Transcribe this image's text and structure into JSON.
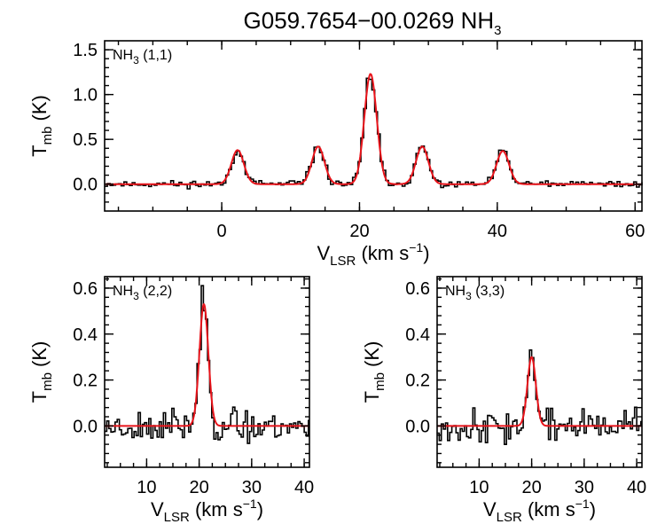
{
  "figure": {
    "title_main": "G059.7654−00.0269 NH",
    "title_sub": "3"
  },
  "colors": {
    "observed": "#000000",
    "fit": "#e8141b"
  },
  "chart_data": [
    {
      "type": "line",
      "name": "NH3 (1,1)",
      "label_main": "NH",
      "label_sub": "3",
      "label_tail": " (1,1)",
      "xlim": [
        -17,
        61
      ],
      "ylim": [
        -0.3,
        1.6
      ],
      "xticks": [
        0,
        20,
        40,
        60
      ],
      "xticklabels": [
        "0",
        "20",
        "40",
        "60"
      ],
      "yticks": [
        0,
        0.5,
        1.0,
        1.5
      ],
      "yticklabels": [
        "0.0",
        "0.5",
        "1.0",
        "1.5"
      ],
      "xlabel": "V",
      "xlabel_sub": "LSR",
      "xlabel_tail": " (km s",
      "xlabel_sup": "−1",
      "xlabel_end": ")",
      "ylabel": "T",
      "ylabel_sub": "mb",
      "ylabel_tail": " (K)",
      "series": [
        {
          "role": "observed",
          "kind": "step",
          "step": 0.4,
          "noise": 0.025,
          "seed": 11
        },
        {
          "role": "fit",
          "kind": "gaussian-sum",
          "components": [
            {
              "center": 2.3,
              "amplitude": 0.38,
              "sigma": 0.9
            },
            {
              "center": 14.0,
              "amplitude": 0.42,
              "sigma": 0.9
            },
            {
              "center": 21.6,
              "amplitude": 1.23,
              "sigma": 0.9
            },
            {
              "center": 29.1,
              "amplitude": 0.42,
              "sigma": 0.9
            },
            {
              "center": 40.8,
              "amplitude": 0.37,
              "sigma": 0.9
            }
          ]
        }
      ],
      "peaks_observed": [
        0.47,
        0.5,
        1.42,
        0.45,
        0.42
      ]
    },
    {
      "type": "line",
      "name": "NH3 (2,2)",
      "label_main": "NH",
      "label_sub": "3",
      "label_tail": " (2,2)",
      "xlim": [
        2,
        41
      ],
      "ylim": [
        -0.18,
        0.65
      ],
      "xticks": [
        10,
        20,
        30,
        40
      ],
      "xticklabels": [
        "10",
        "20",
        "30",
        "40"
      ],
      "yticks": [
        0,
        0.2,
        0.4,
        0.6
      ],
      "yticklabels": [
        "0.0",
        "0.2",
        "0.4",
        "0.6"
      ],
      "xlabel": "V",
      "xlabel_sub": "LSR",
      "xlabel_tail": " (km s",
      "xlabel_sup": "−1",
      "xlabel_end": ")",
      "ylabel": "T",
      "ylabel_sub": "mb",
      "ylabel_tail": " (K)",
      "series": [
        {
          "role": "observed",
          "kind": "step",
          "step": 0.4,
          "noise": 0.045,
          "seed": 23
        },
        {
          "role": "fit",
          "kind": "gaussian-sum",
          "components": [
            {
              "center": 20.9,
              "amplitude": 0.53,
              "sigma": 0.85
            }
          ]
        }
      ],
      "peak_observed": 0.54
    },
    {
      "type": "line",
      "name": "NH3 (3,3)",
      "label_main": "NH",
      "label_sub": "3",
      "label_tail": " (3,3)",
      "xlim": [
        2,
        41
      ],
      "ylim": [
        -0.18,
        0.65
      ],
      "xticks": [
        10,
        20,
        30,
        40
      ],
      "xticklabels": [
        "10",
        "20",
        "30",
        "40"
      ],
      "yticks": [
        0,
        0.2,
        0.4,
        0.6
      ],
      "yticklabels": [
        "0.0",
        "0.2",
        "0.4",
        "0.6"
      ],
      "xlabel": "V",
      "xlabel_sub": "LSR",
      "xlabel_tail": " (km s",
      "xlabel_sup": "−1",
      "xlabel_end": ")",
      "ylabel": "T",
      "ylabel_sub": "mb",
      "ylabel_tail": " (K)",
      "series": [
        {
          "role": "observed",
          "kind": "step",
          "step": 0.4,
          "noise": 0.045,
          "seed": 37
        },
        {
          "role": "fit",
          "kind": "gaussian-sum",
          "components": [
            {
              "center": 20.0,
              "amplitude": 0.3,
              "sigma": 0.8
            }
          ]
        }
      ],
      "peak_observed": 0.34
    }
  ]
}
